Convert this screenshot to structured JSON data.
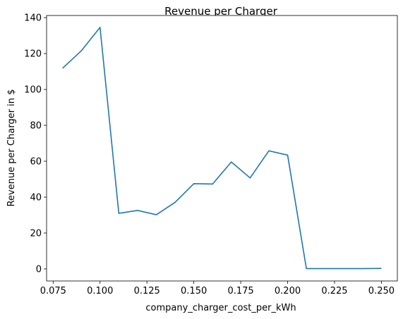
{
  "chart_data": {
    "type": "line",
    "title": "Revenue per Charger",
    "xlabel": "company_charger_cost_per_kWh",
    "ylabel": "Revenue per Charger in $",
    "xlim": [
      0.0715,
      0.2585
    ],
    "ylim": [
      -6.7,
      141.2
    ],
    "grid": false,
    "xticks": [
      0.075,
      0.1,
      0.125,
      0.15,
      0.175,
      0.2,
      0.225,
      0.25
    ],
    "xtick_labels": [
      "0.075",
      "0.100",
      "0.125",
      "0.150",
      "0.175",
      "0.200",
      "0.225",
      "0.250"
    ],
    "yticks": [
      0,
      20,
      40,
      60,
      80,
      100,
      120,
      140
    ],
    "ytick_labels": [
      "0",
      "20",
      "40",
      "60",
      "80",
      "100",
      "120",
      "140"
    ],
    "series": [
      {
        "color": "#1f77b4",
        "x": [
          0.08,
          0.09,
          0.1,
          0.11,
          0.12,
          0.13,
          0.14,
          0.15,
          0.16,
          0.17,
          0.18,
          0.19,
          0.2,
          0.21,
          0.22,
          0.23,
          0.24,
          0.25
        ],
        "values": [
          111.8,
          121.5,
          134.6,
          31.0,
          32.6,
          30.2,
          37.1,
          47.5,
          47.3,
          59.6,
          50.7,
          65.8,
          63.4,
          0.2,
          0.2,
          0.2,
          0.2,
          0.3
        ]
      }
    ]
  }
}
